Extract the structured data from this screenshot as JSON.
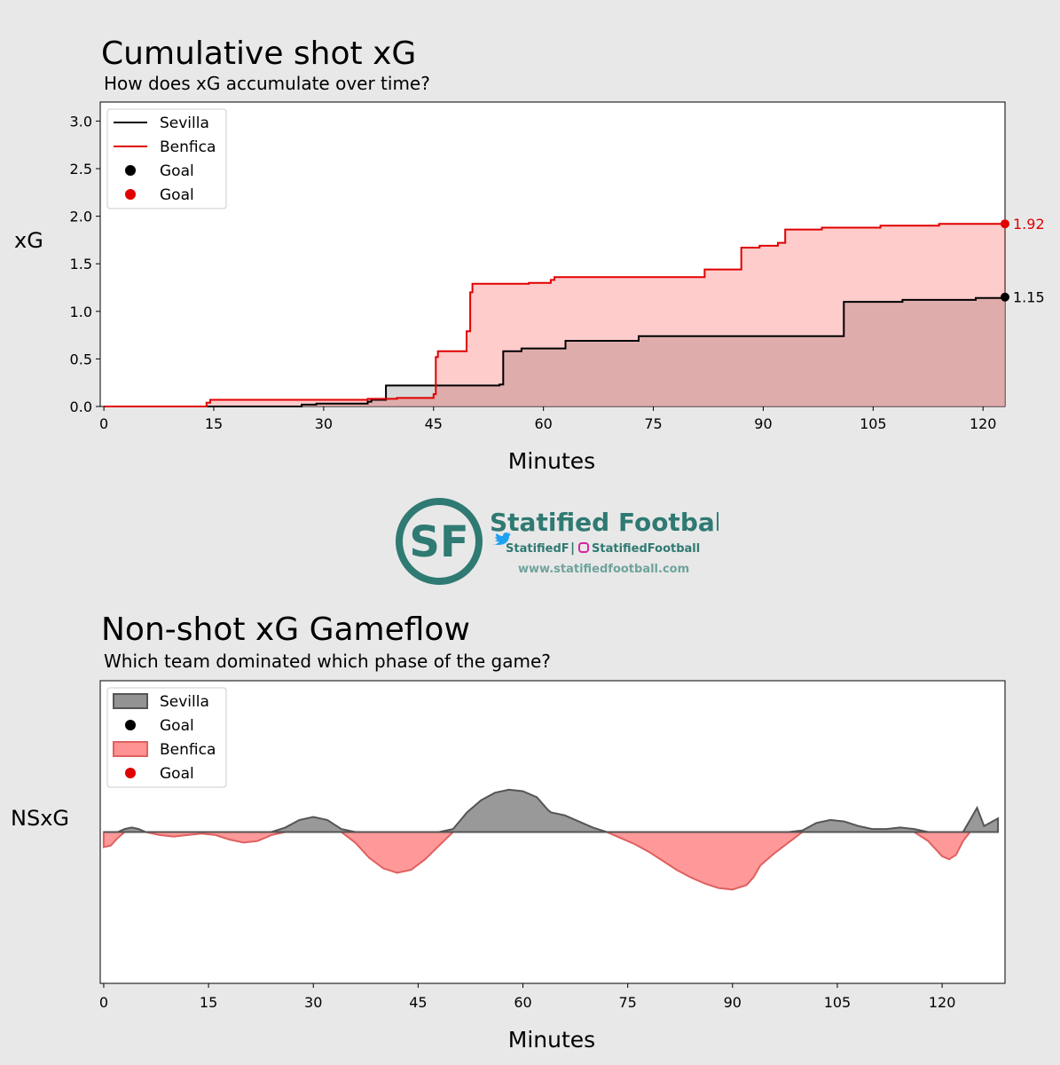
{
  "chart_data": [
    {
      "type": "line",
      "title": "Cumulative shot xG",
      "subtitle": "How does xG accumulate over time?",
      "xlabel": "Minutes",
      "ylabel": "xG",
      "xlim": [
        -0.5,
        123
      ],
      "ylim": [
        0,
        3.2
      ],
      "xticks": [
        0,
        15,
        30,
        45,
        60,
        75,
        90,
        105,
        120
      ],
      "yticks": [
        0.0,
        0.5,
        1.0,
        1.5,
        2.0,
        2.5,
        3.0
      ],
      "legend": {
        "position": "top-left",
        "entries": [
          {
            "label": "Sevilla",
            "kind": "line",
            "color": "#000000"
          },
          {
            "label": "Benfica",
            "kind": "line",
            "color": "#e00000"
          },
          {
            "label": "Goal",
            "kind": "dot",
            "color": "#000000"
          },
          {
            "label": "Goal",
            "kind": "dot",
            "color": "#e00000"
          }
        ]
      },
      "series": [
        {
          "name": "Sevilla",
          "color": "#000000",
          "fill": "#c8c8c8",
          "final_label": "1.15",
          "steps": [
            [
              0,
              0
            ],
            [
              27,
              0.02
            ],
            [
              29,
              0.03
            ],
            [
              36,
              0.05
            ],
            [
              36.5,
              0.07
            ],
            [
              38.5,
              0.22
            ],
            [
              54,
              0.23
            ],
            [
              54.5,
              0.58
            ],
            [
              57,
              0.61
            ],
            [
              63,
              0.69
            ],
            [
              73,
              0.74
            ],
            [
              101,
              1.1
            ],
            [
              109,
              1.12
            ],
            [
              119,
              1.14
            ],
            [
              123,
              1.15
            ]
          ],
          "goals": [
            [
              123,
              1.15
            ]
          ]
        },
        {
          "name": "Benfica",
          "color": "#e00000",
          "fill": "rgba(255,0,0,0.2)",
          "final_label": "1.92",
          "steps": [
            [
              0,
              0
            ],
            [
              14,
              0.04
            ],
            [
              14.5,
              0.07
            ],
            [
              36,
              0.08
            ],
            [
              40,
              0.09
            ],
            [
              45,
              0.13
            ],
            [
              45.3,
              0.52
            ],
            [
              45.6,
              0.58
            ],
            [
              49.5,
              0.79
            ],
            [
              50,
              1.2
            ],
            [
              50.3,
              1.29
            ],
            [
              58,
              1.3
            ],
            [
              61,
              1.33
            ],
            [
              61.5,
              1.36
            ],
            [
              82,
              1.44
            ],
            [
              87,
              1.67
            ],
            [
              89.5,
              1.69
            ],
            [
              92,
              1.72
            ],
            [
              93,
              1.86
            ],
            [
              98,
              1.88
            ],
            [
              106,
              1.9
            ],
            [
              114,
              1.92
            ],
            [
              123,
              1.92
            ]
          ],
          "goals": [
            [
              123,
              1.92
            ]
          ]
        }
      ]
    },
    {
      "type": "area",
      "title": "Non-shot xG Gameflow",
      "subtitle": "Which team dominated which phase of the game?",
      "xlabel": "Minutes",
      "ylabel": "NSxG",
      "xlim": [
        -0.5,
        129
      ],
      "ylim": [
        -1.0,
        1.0
      ],
      "xticks": [
        0,
        15,
        30,
        45,
        60,
        75,
        90,
        105,
        120
      ],
      "grid": false,
      "legend": {
        "position": "top-left",
        "entries": [
          {
            "label": "Sevilla",
            "kind": "area",
            "color": "#808080"
          },
          {
            "label": "Goal",
            "kind": "dot",
            "color": "#000000"
          },
          {
            "label": "Benfica",
            "kind": "area",
            "color": "#ff8080"
          },
          {
            "label": "Goal",
            "kind": "dot",
            "color": "#e00000"
          }
        ]
      },
      "flow": {
        "x": [
          0,
          1,
          2,
          3,
          4,
          5,
          6,
          8,
          10,
          12,
          14,
          16,
          18,
          20,
          22,
          24,
          26,
          28,
          30,
          32,
          34,
          36,
          38,
          40,
          42,
          44,
          46,
          48,
          50,
          52,
          54,
          56,
          58,
          60,
          62,
          63.5,
          64,
          66,
          68,
          70,
          72,
          74,
          76,
          78,
          80,
          82,
          84,
          86,
          88,
          90,
          92,
          93,
          94,
          96,
          98,
          100,
          102,
          104,
          106,
          108,
          110,
          112,
          114,
          116,
          118,
          120,
          121,
          122,
          123,
          124,
          125,
          126,
          128
        ],
        "values": [
          -0.1,
          -0.09,
          -0.04,
          0.02,
          0.03,
          0.02,
          0,
          -0.02,
          -0.03,
          -0.02,
          -0.01,
          -0.02,
          -0.05,
          -0.07,
          -0.06,
          -0.02,
          0.03,
          0.08,
          0.1,
          0.08,
          0.02,
          -0.07,
          -0.17,
          -0.24,
          -0.27,
          -0.25,
          -0.18,
          -0.09,
          0.02,
          0.13,
          0.21,
          0.26,
          0.28,
          0.27,
          0.23,
          0.15,
          0.13,
          0.11,
          0.07,
          0.03,
          0,
          -0.04,
          -0.08,
          -0.13,
          -0.19,
          -0.25,
          -0.3,
          -0.34,
          -0.37,
          -0.38,
          -0.35,
          -0.3,
          -0.22,
          -0.14,
          -0.07,
          0.01,
          0.06,
          0.08,
          0.07,
          0.04,
          0.02,
          0.02,
          0.03,
          0.02,
          -0.06,
          -0.16,
          -0.18,
          -0.15,
          -0.06,
          0.08,
          0.16,
          0.04,
          0.09
        ]
      }
    }
  ],
  "logo": {
    "monogram": "SF",
    "name": "Statified Football",
    "twitter": "StatifiedF",
    "separator": "|",
    "instagram": "StatifiedFootball",
    "website": "www.statifiedfootball.com",
    "color": "#2f7a72"
  }
}
